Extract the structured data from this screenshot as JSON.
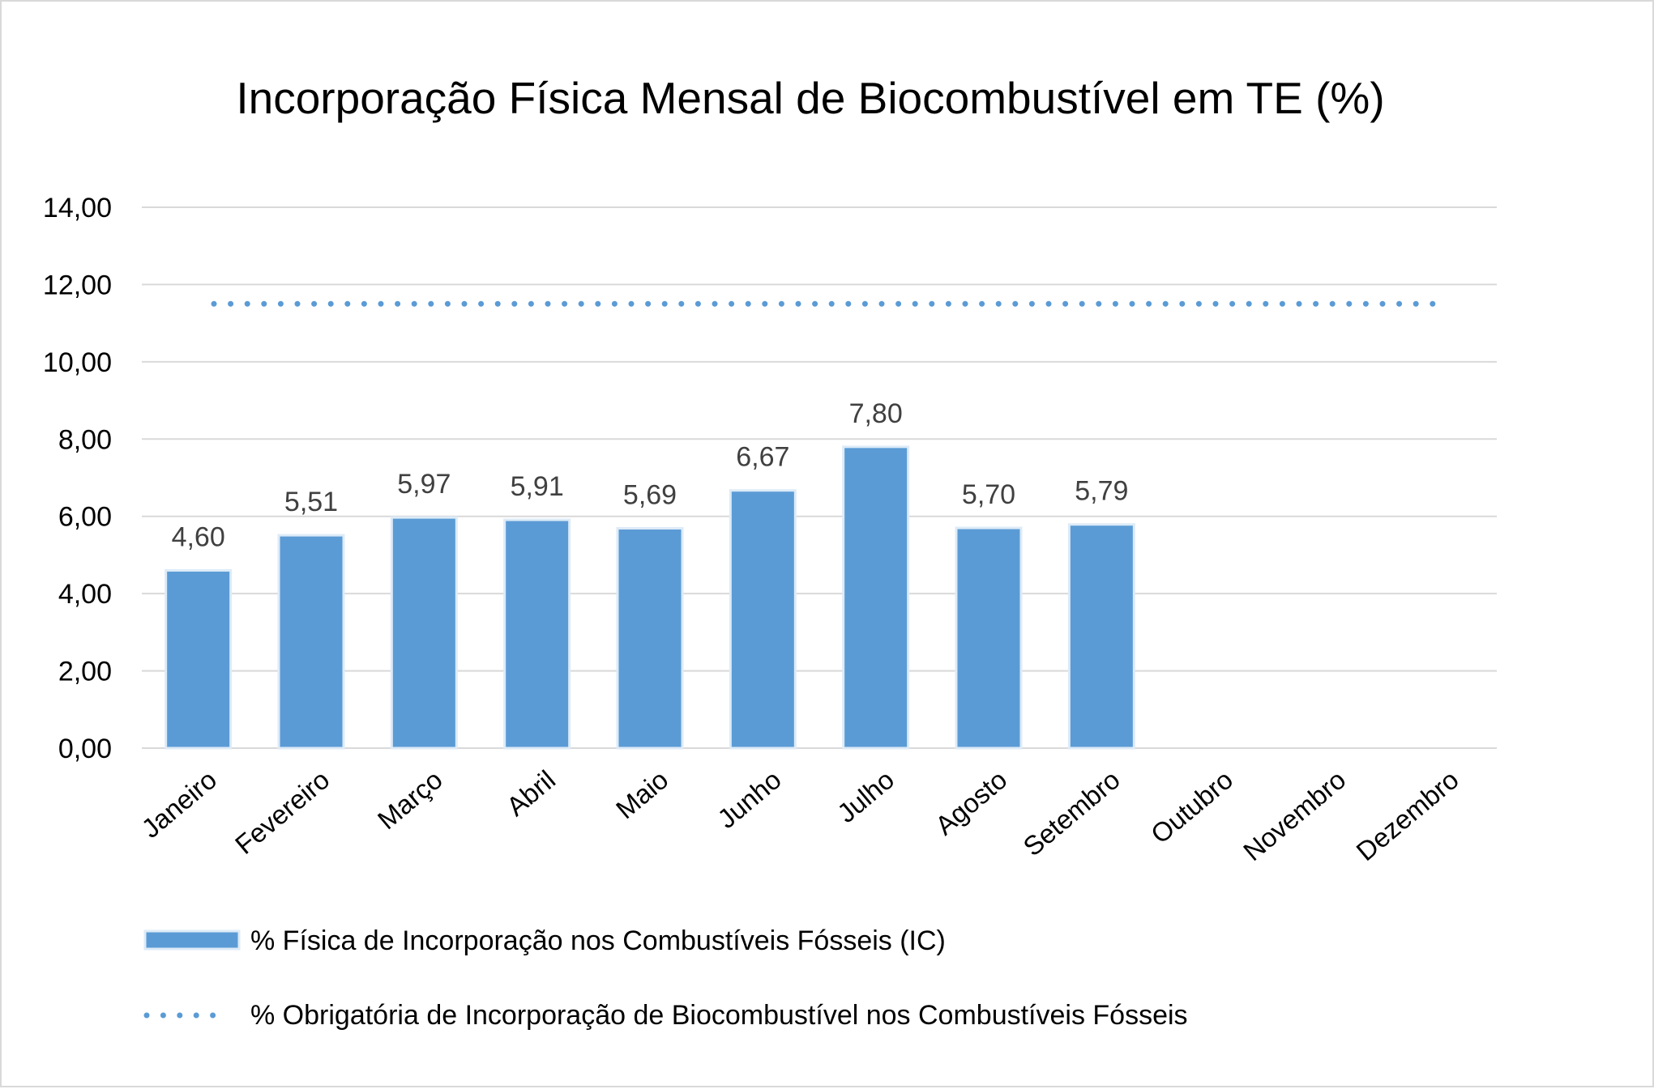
{
  "chart_data": {
    "type": "bar",
    "title": "Incorporação Física Mensal de Biocombustível em TE (%)",
    "categories": [
      "Janeiro",
      "Fevereiro",
      "Março",
      "Abril",
      "Maio",
      "Junho",
      "Julho",
      "Agosto",
      "Setembro",
      "Outubro",
      "Novembro",
      "Dezembro"
    ],
    "series": [
      {
        "name": "% Física de Incorporação nos Combustíveis Fósseis (IC)",
        "kind": "bar",
        "values": [
          4.6,
          5.51,
          5.97,
          5.91,
          5.69,
          6.67,
          7.8,
          5.7,
          5.79,
          null,
          null,
          null
        ],
        "labels": [
          "4,60",
          "5,51",
          "5,97",
          "5,91",
          "5,69",
          "6,67",
          "7,80",
          "5,70",
          "5,79",
          "",
          "",
          ""
        ],
        "color": "#5b9bd5"
      },
      {
        "name": "% Obrigatória de Incorporação de Biocombustível nos Combustíveis Fósseis",
        "kind": "line-dotted",
        "values": [
          11.5,
          11.5,
          11.5,
          11.5,
          11.5,
          11.5,
          11.5,
          11.5,
          11.5,
          11.5,
          11.5,
          11.5
        ],
        "color": "#5b9bd5"
      }
    ],
    "ylim": [
      0,
      14
    ],
    "ytick_values": [
      0,
      2,
      4,
      6,
      8,
      10,
      12,
      14
    ],
    "yticks": [
      "0,00",
      "2,00",
      "4,00",
      "6,00",
      "8,00",
      "10,00",
      "12,00",
      "14,00"
    ],
    "grid": true,
    "grid_color": "#d9d9d9",
    "legend_position": "bottom"
  }
}
